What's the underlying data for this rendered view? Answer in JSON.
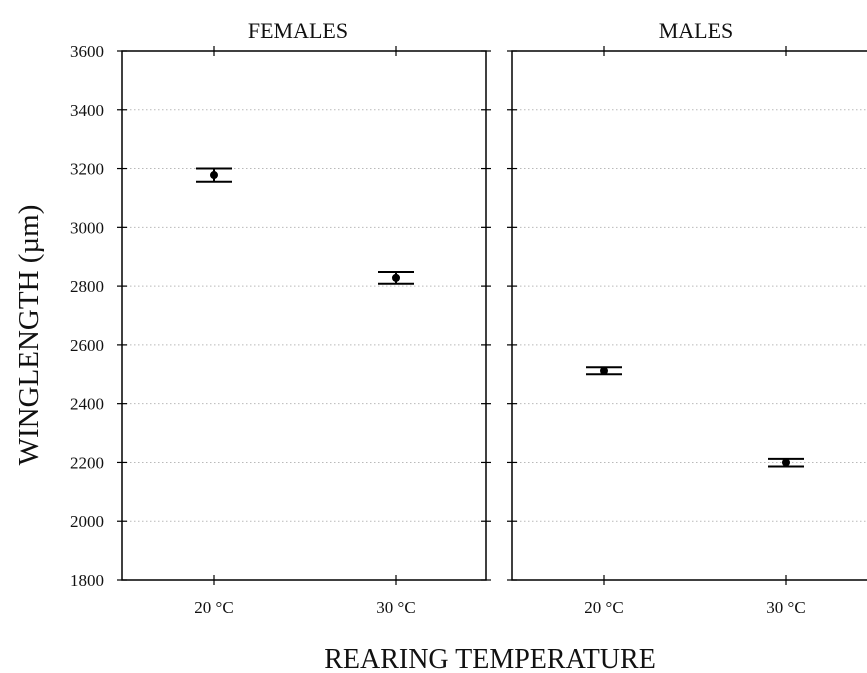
{
  "chart_data": {
    "type": "scatter",
    "ylabel": "WINGLENGTH (µm)",
    "xlabel": "REARING TEMPERATURE",
    "ylim": [
      1800,
      3600
    ],
    "yticks": [
      1800,
      2000,
      2200,
      2400,
      2600,
      2800,
      3000,
      3200,
      3400,
      3600
    ],
    "grid": "horizontal dotted",
    "categories": [
      "20 °C",
      "30 °C"
    ],
    "panels": [
      {
        "title": "FEMALES",
        "points": [
          {
            "category": "20 °C",
            "mean": 3178,
            "lower": 3155,
            "upper": 3200
          },
          {
            "category": "30 °C",
            "mean": 2828,
            "lower": 2808,
            "upper": 2848
          }
        ]
      },
      {
        "title": "MALES",
        "points": [
          {
            "category": "20 °C",
            "mean": 2512,
            "lower": 2500,
            "upper": 2524
          },
          {
            "category": "30 °C",
            "mean": 2200,
            "lower": 2186,
            "upper": 2212
          }
        ]
      }
    ]
  }
}
